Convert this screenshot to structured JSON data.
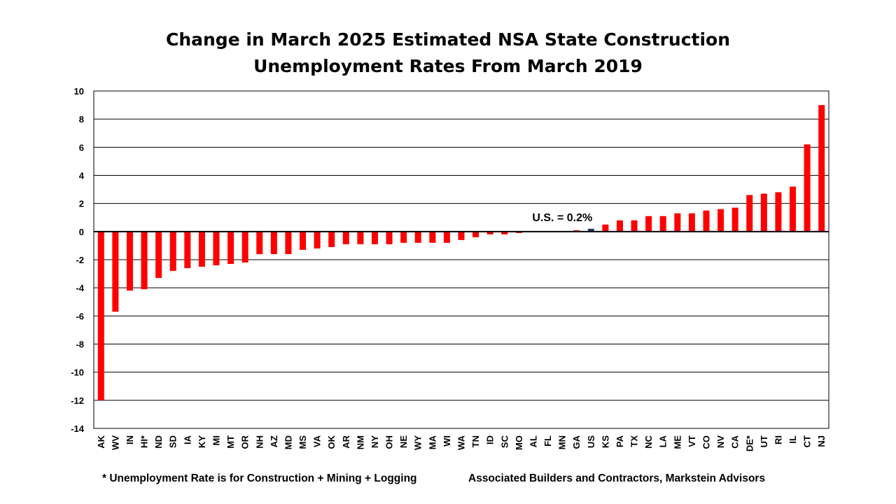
{
  "chart_data": {
    "type": "bar",
    "title": [
      "Change in March 2025 Estimated NSA State Construction",
      "Unemployment Rates From March 2019"
    ],
    "xlabel": "",
    "ylabel": "",
    "ylim": [
      -14,
      10
    ],
    "yticks": [
      10,
      8,
      6,
      4,
      2,
      0,
      -2,
      -4,
      -6,
      -8,
      -10,
      -12,
      -14
    ],
    "grid": true,
    "categories": [
      "AK",
      "WV",
      "IN",
      "HI*",
      "ND",
      "SD",
      "IA",
      "KY",
      "MI",
      "MT",
      "OR",
      "NH",
      "AZ",
      "MD",
      "MS",
      "VA",
      "OK",
      "AR",
      "NM",
      "NY",
      "OH",
      "NE",
      "WY",
      "MA",
      "WI",
      "WA",
      "TN",
      "ID",
      "SC",
      "MO",
      "AL",
      "FL",
      "MN",
      "GA",
      "US",
      "KS",
      "PA",
      "TX",
      "NC",
      "LA",
      "ME",
      "VT",
      "CO",
      "NV",
      "CA",
      "DE*",
      "UT",
      "RI",
      "IL",
      "CT",
      "NJ"
    ],
    "values": [
      -12.0,
      -5.7,
      -4.2,
      -4.1,
      -3.3,
      -2.8,
      -2.6,
      -2.5,
      -2.4,
      -2.3,
      -2.2,
      -1.6,
      -1.6,
      -1.6,
      -1.3,
      -1.2,
      -1.1,
      -0.9,
      -0.9,
      -0.9,
      -0.9,
      -0.8,
      -0.8,
      -0.8,
      -0.8,
      -0.6,
      -0.4,
      -0.2,
      -0.2,
      -0.1,
      0.0,
      0.0,
      0.0,
      0.1,
      0.2,
      0.5,
      0.8,
      0.8,
      1.1,
      1.1,
      1.3,
      1.3,
      1.5,
      1.6,
      1.7,
      2.6,
      2.7,
      2.8,
      3.2,
      6.2,
      9.0
    ],
    "highlight_category": "US",
    "colors": {
      "bar": "#ff0000",
      "highlight": "#1f3864",
      "grid": "#000000"
    },
    "annotation": "U.S. = 0.2%"
  },
  "footnotes": {
    "left": "* Unemployment Rate is for Construction + Mining + Logging",
    "right": "Associated Builders and Contractors, Markstein Advisors"
  }
}
